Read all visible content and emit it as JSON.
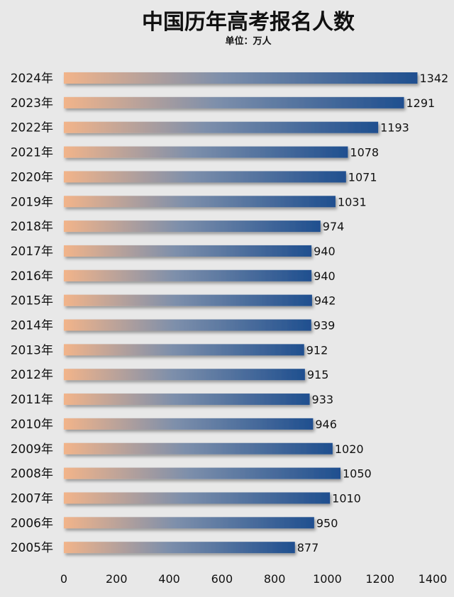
{
  "chart_data": {
    "type": "bar",
    "orientation": "horizontal",
    "title": "中国历年高考报名人数",
    "subtitle": "单位：万人",
    "categories": [
      "2024年",
      "2023年",
      "2022年",
      "2021年",
      "2020年",
      "2019年",
      "2018年",
      "2017年",
      "2016年",
      "2015年",
      "2014年",
      "2013年",
      "2012年",
      "2011年",
      "2010年",
      "2009年",
      "2008年",
      "2007年",
      "2006年",
      "2005年"
    ],
    "values": [
      1342,
      1291,
      1193,
      1078,
      1071,
      1031,
      974,
      940,
      940,
      942,
      939,
      912,
      915,
      933,
      946,
      1020,
      1050,
      1010,
      950,
      877
    ],
    "value_labels": [
      "1342",
      "1291",
      "1193",
      "1078",
      "1071",
      "1031",
      "974",
      "940",
      "940",
      "942",
      "939",
      "912",
      "915",
      "933",
      "946",
      "1020",
      "1050",
      "1010",
      "950",
      "877"
    ],
    "xlim": [
      0,
      1400
    ],
    "xticks": [
      "0",
      "200",
      "400",
      "600",
      "800",
      "1000",
      "1200",
      "1400"
    ],
    "grid": false,
    "legend": "none",
    "colors": {
      "bar_start": "#f2b48a",
      "bar_mid": "#6b86ad",
      "bar_end": "#1f4f8f",
      "background": "#e8e8e8"
    }
  }
}
